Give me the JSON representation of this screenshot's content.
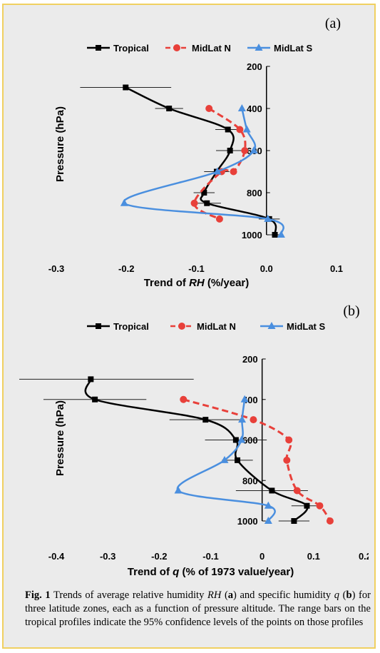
{
  "chart_data": [
    {
      "type": "line",
      "panel_label": "(a)",
      "xlabel_parts": [
        {
          "text": "Trend of ",
          "style": "bold"
        },
        {
          "text": "RH",
          "style": "bold-italic"
        },
        {
          "text": " (%/year)",
          "style": "bold"
        }
      ],
      "ylabel": "Pressure (hPa)",
      "xlim": [
        -0.3,
        0.1
      ],
      "ylim": [
        200,
        1000
      ],
      "y_inverted": true,
      "xticks": [
        "-0.3",
        "-0.2",
        "-0.1",
        "0.0",
        "0.1"
      ],
      "xtick_values": [
        -0.3,
        -0.2,
        -0.1,
        0.0,
        0.1
      ],
      "yticks": [
        "200",
        "400",
        "600",
        "800",
        "1000"
      ],
      "ytick_values": [
        200,
        400,
        600,
        800,
        1000
      ],
      "legend_position": "top",
      "series": [
        {
          "name": "Tropical",
          "color": "#000000",
          "dash": "solid",
          "marker": "square",
          "x": [
            -0.201,
            -0.139,
            -0.055,
            -0.052,
            -0.071,
            -0.089,
            -0.085,
            0.004,
            0.012
          ],
          "y": [
            300,
            400,
            500,
            600,
            700,
            800,
            850,
            925,
            1000
          ],
          "err": [
            0.065,
            0.02,
            0.018,
            0.02,
            0.018,
            0.015,
            0.02,
            0.015,
            0.008
          ]
        },
        {
          "name": "MidLat N",
          "color": "#e8403a",
          "dash": "dashed",
          "marker": "circle",
          "x": [
            -0.082,
            -0.038,
            -0.031,
            -0.047,
            -0.064,
            -0.103,
            -0.067
          ],
          "y": [
            400,
            500,
            600,
            700,
            700,
            850,
            925
          ]
        },
        {
          "name": "MidLat S",
          "color": "#4a8fdf",
          "dash": "solid",
          "marker": "triangle",
          "x": [
            -0.035,
            -0.028,
            -0.018,
            -0.07,
            -0.203,
            0.002,
            0.021
          ],
          "y": [
            400,
            500,
            600,
            700,
            850,
            925,
            1000
          ]
        }
      ]
    },
    {
      "type": "line",
      "panel_label": "(b)",
      "xlabel_parts": [
        {
          "text": "Trend of ",
          "style": "bold"
        },
        {
          "text": "q",
          "style": "bold-italic"
        },
        {
          "text": " (% of 1973 value/year)",
          "style": "bold"
        }
      ],
      "ylabel": "Pressure (hPa)",
      "xlim": [
        -0.4,
        0.2
      ],
      "ylim": [
        200,
        1000
      ],
      "y_inverted": true,
      "xticks": [
        "-0.4",
        "-0.3",
        "-0.2",
        "-0.1",
        "0",
        "0.1",
        "0.2"
      ],
      "xtick_values": [
        -0.4,
        -0.3,
        -0.2,
        -0.1,
        0,
        0.1,
        0.2
      ],
      "yticks": [
        "200",
        "400",
        "600",
        "800",
        "1000"
      ],
      "ytick_values": [
        200,
        400,
        600,
        800,
        1000
      ],
      "legend_position": "top",
      "series": [
        {
          "name": "Tropical",
          "color": "#000000",
          "dash": "solid",
          "marker": "square",
          "x": [
            -0.333,
            -0.325,
            -0.11,
            -0.051,
            -0.048,
            0.019,
            0.087,
            0.062
          ],
          "y": [
            300,
            400,
            500,
            600,
            700,
            850,
            925,
            1000
          ],
          "err": [
            0.2,
            0.1,
            0.07,
            0.06,
            0.03,
            0.07,
            0.03,
            0.03
          ]
        },
        {
          "name": "MidLat N",
          "color": "#e8403a",
          "dash": "dashed",
          "marker": "circle",
          "x": [
            -0.153,
            -0.017,
            0.052,
            0.048,
            0.068,
            0.112,
            0.132
          ],
          "y": [
            400,
            500,
            600,
            700,
            850,
            925,
            1000
          ]
        },
        {
          "name": "MidLat S",
          "color": "#4a8fdf",
          "dash": "solid",
          "marker": "triangle",
          "x": [
            -0.034,
            -0.039,
            -0.04,
            -0.073,
            -0.163,
            0.012,
            0.012
          ],
          "y": [
            400,
            500,
            600,
            700,
            850,
            925,
            1000
          ]
        }
      ]
    }
  ],
  "caption": {
    "fig": "Fig. 1",
    "p1": " Trends of average relative humidity ",
    "rh": "RH",
    "p2": " (",
    "a": "a",
    "p3": ") and specific humidity ",
    "q": "q",
    "p4": " (",
    "b": "b",
    "p5": ") for three latitude zones, each as a function of pressure altitude. The range bars on the tropical profiles indicate the 95% confidence levels of the points on those profiles"
  }
}
